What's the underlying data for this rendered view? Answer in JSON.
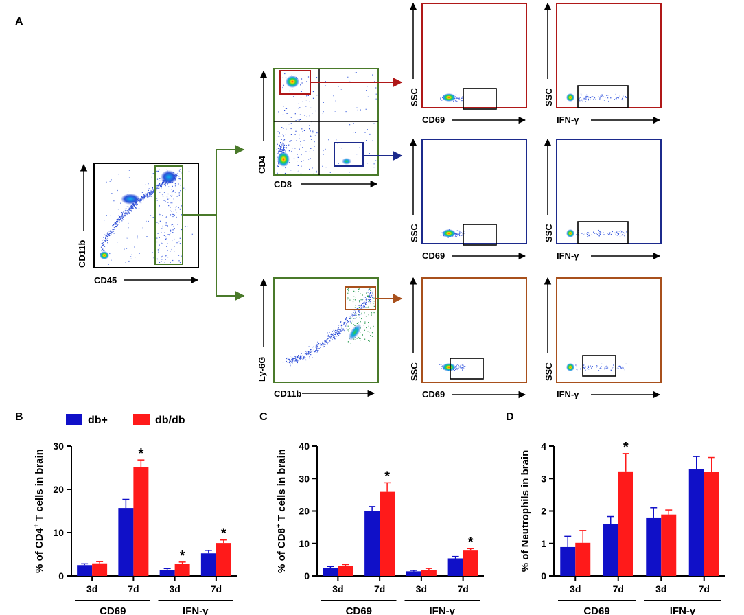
{
  "panel_letters": {
    "a": "A",
    "b": "B",
    "c": "C",
    "d": "D"
  },
  "colors": {
    "db_plus": "#1010c8",
    "db_db": "#ff1a1a",
    "gate_green": "#4a7a2a",
    "cd4_red": "#b01818",
    "cd8_blue": "#1c2a8c",
    "neut_brown": "#a8501c"
  },
  "flow": {
    "cd45_plot": {
      "x_label": "CD45",
      "y_label": "CD11b"
    },
    "lymph_plot": {
      "x_label": "CD8",
      "y_label": "CD4"
    },
    "myeloid_plot": {
      "x_label": "CD11b",
      "y_label": "Ly-6G"
    },
    "cd4_row": {
      "left_x": "CD69",
      "left_y": "SSC",
      "right_x": "IFN-γ",
      "right_y": "SSC"
    },
    "cd8_row": {
      "left_x": "CD69",
      "left_y": "SSC",
      "right_x": "IFN-γ",
      "right_y": "SSC"
    },
    "neut_row": {
      "left_x": "CD69",
      "left_y": "SSC",
      "right_x": "IFN-γ",
      "right_y": "SSC"
    }
  },
  "legend": {
    "db_plus": "db+",
    "db_db": "db/db"
  },
  "chart_data": [
    {
      "type": "bar",
      "panel": "B",
      "ylabel_pre": "% of CD4",
      "ylabel_sup": "+",
      "ylabel_post": " T cells in brain",
      "ylim": [
        0,
        30
      ],
      "yticks": [
        "0",
        "10",
        "20",
        "30"
      ],
      "categories": [
        "3d",
        "7d",
        "3d",
        "7d"
      ],
      "groups": [
        {
          "label": "CD69",
          "span": [
            0,
            1
          ]
        },
        {
          "label": "IFN-γ",
          "span": [
            2,
            3
          ]
        }
      ],
      "series": [
        {
          "name": "db+",
          "values": [
            2.5,
            15.7,
            1.4,
            5.2
          ],
          "errors": [
            0.3,
            2.0,
            0.3,
            0.7
          ]
        },
        {
          "name": "db/db",
          "values": [
            2.9,
            25.2,
            2.7,
            7.6
          ],
          "errors": [
            0.4,
            1.6,
            0.5,
            0.7
          ]
        }
      ],
      "significance": [
        "",
        "*",
        "*",
        "*"
      ]
    },
    {
      "type": "bar",
      "panel": "C",
      "ylabel_pre": "% of CD8",
      "ylabel_sup": "+",
      "ylabel_post": " T cells in brain",
      "ylim": [
        0,
        40
      ],
      "yticks": [
        "0",
        "10",
        "20",
        "30",
        "40"
      ],
      "categories": [
        "3d",
        "7d",
        "3d",
        "7d"
      ],
      "groups": [
        {
          "label": "CD69",
          "span": [
            0,
            1
          ]
        },
        {
          "label": "IFN-γ",
          "span": [
            2,
            3
          ]
        }
      ],
      "series": [
        {
          "name": "db+",
          "values": [
            2.5,
            20.0,
            1.4,
            5.4
          ],
          "errors": [
            0.4,
            1.4,
            0.3,
            0.6
          ]
        },
        {
          "name": "db/db",
          "values": [
            3.1,
            25.9,
            1.8,
            7.8
          ],
          "errors": [
            0.4,
            2.8,
            0.5,
            0.6
          ]
        }
      ],
      "significance": [
        "",
        "*",
        "",
        "*"
      ]
    },
    {
      "type": "bar",
      "panel": "D",
      "ylabel_pre": "% of Neutrophils in brain",
      "ylabel_sup": "",
      "ylabel_post": "",
      "ylim": [
        0,
        4
      ],
      "yticks": [
        "0",
        "1",
        "2",
        "3",
        "4"
      ],
      "categories": [
        "3d",
        "7d",
        "3d",
        "7d"
      ],
      "groups": [
        {
          "label": "CD69",
          "span": [
            0,
            1
          ]
        },
        {
          "label": "IFN-γ",
          "span": [
            2,
            3
          ]
        }
      ],
      "series": [
        {
          "name": "db+",
          "values": [
            0.89,
            1.6,
            1.8,
            3.3
          ],
          "errors": [
            0.33,
            0.23,
            0.3,
            0.38
          ]
        },
        {
          "name": "db/db",
          "values": [
            1.02,
            3.22,
            1.89,
            3.2
          ],
          "errors": [
            0.38,
            0.55,
            0.14,
            0.45
          ]
        }
      ],
      "significance": [
        "",
        "*",
        "",
        ""
      ]
    }
  ]
}
